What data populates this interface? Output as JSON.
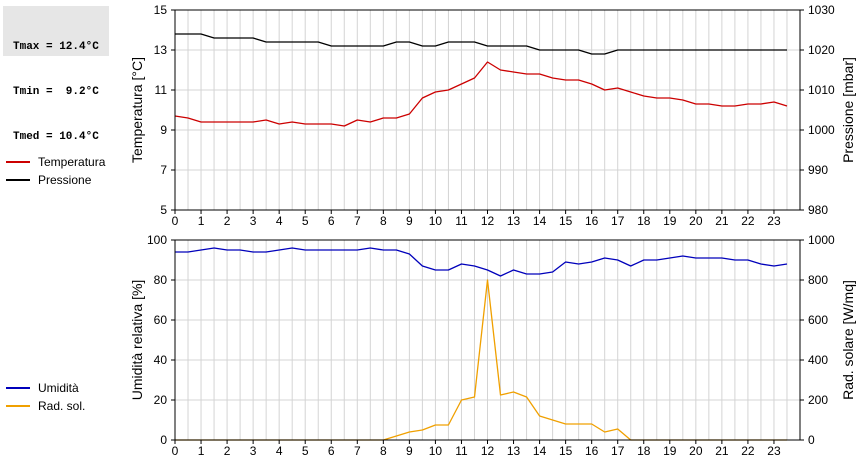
{
  "stats": {
    "tmax": "Tmax = 12.4°C",
    "tmin": "Tmin =  9.2°C",
    "tmed": "Tmed = 10.4°C"
  },
  "colors": {
    "temperature": "#cc0000",
    "pressure": "#000000",
    "humidity": "#0000bb",
    "radiation": "#f0a000",
    "grid": "#d4d4d4"
  },
  "chart_data": [
    {
      "type": "line",
      "title": "",
      "xlabel": "",
      "xlim": [
        0,
        24
      ],
      "x_ticks": [
        "0",
        "1",
        "2",
        "3",
        "4",
        "5",
        "6",
        "7",
        "8",
        "9",
        "10",
        "11",
        "12",
        "13",
        "14",
        "15",
        "16",
        "17",
        "18",
        "19",
        "20",
        "21",
        "22",
        "23"
      ],
      "grid": true,
      "legend": "left",
      "y_left": {
        "label": "Temperatura [°C]",
        "lim": [
          5,
          15
        ],
        "ticks": [
          "5",
          "7",
          "9",
          "11",
          "13",
          "15"
        ]
      },
      "y_right": {
        "label": "Pressione [mbar]",
        "lim": [
          980,
          1030
        ],
        "ticks": [
          "980",
          "990",
          "1000",
          "1010",
          "1020",
          "1030"
        ]
      },
      "x": [
        0,
        0.5,
        1,
        1.5,
        2,
        2.5,
        3,
        3.5,
        4,
        4.5,
        5,
        5.5,
        6,
        6.5,
        7,
        7.5,
        8,
        8.5,
        9,
        9.5,
        10,
        10.5,
        11,
        11.5,
        12,
        12.5,
        13,
        13.5,
        14,
        14.5,
        15,
        15.5,
        16,
        16.5,
        17,
        17.5,
        18,
        18.5,
        19,
        19.5,
        20,
        20.5,
        21,
        21.5,
        22,
        22.5,
        23,
        23.5
      ],
      "series": [
        {
          "name": "Temperatura",
          "axis": "left",
          "values": [
            9.7,
            9.6,
            9.4,
            9.4,
            9.4,
            9.4,
            9.4,
            9.5,
            9.3,
            9.4,
            9.3,
            9.3,
            9.3,
            9.2,
            9.5,
            9.4,
            9.6,
            9.6,
            9.8,
            10.6,
            10.9,
            11.0,
            11.3,
            11.6,
            12.4,
            12.0,
            11.9,
            11.8,
            11.8,
            11.6,
            11.5,
            11.5,
            11.3,
            11.0,
            11.1,
            10.9,
            10.7,
            10.6,
            10.6,
            10.5,
            10.3,
            10.3,
            10.2,
            10.2,
            10.3,
            10.3,
            10.4,
            10.2
          ]
        },
        {
          "name": "Pressione",
          "axis": "right",
          "values": [
            1024,
            1024,
            1024,
            1023,
            1023,
            1023,
            1023,
            1022,
            1022,
            1022,
            1022,
            1022,
            1021,
            1021,
            1021,
            1021,
            1021,
            1022,
            1022,
            1021,
            1021,
            1022,
            1022,
            1022,
            1021,
            1021,
            1021,
            1021,
            1020,
            1020,
            1020,
            1020,
            1019,
            1019,
            1020,
            1020,
            1020,
            1020,
            1020,
            1020,
            1020,
            1020,
            1020,
            1020,
            1020,
            1020,
            1020,
            1020
          ]
        }
      ]
    },
    {
      "type": "line",
      "title": "",
      "xlabel": "",
      "xlim": [
        0,
        24
      ],
      "x_ticks": [
        "0",
        "1",
        "2",
        "3",
        "4",
        "5",
        "6",
        "7",
        "8",
        "9",
        "10",
        "11",
        "12",
        "13",
        "14",
        "15",
        "16",
        "17",
        "18",
        "19",
        "20",
        "21",
        "22",
        "23"
      ],
      "grid": true,
      "legend": "left",
      "y_left": {
        "label": "Umidità relativa [%]",
        "lim": [
          0,
          100
        ],
        "ticks": [
          "0",
          "20",
          "40",
          "60",
          "80",
          "100"
        ]
      },
      "y_right": {
        "label": "Rad. solare [W/mq]",
        "lim": [
          0,
          1000
        ],
        "ticks": [
          "0",
          "200",
          "400",
          "600",
          "800",
          "1000"
        ]
      },
      "x": [
        0,
        0.5,
        1,
        1.5,
        2,
        2.5,
        3,
        3.5,
        4,
        4.5,
        5,
        5.5,
        6,
        6.5,
        7,
        7.5,
        8,
        8.5,
        9,
        9.5,
        10,
        10.5,
        11,
        11.5,
        12,
        12.5,
        13,
        13.5,
        14,
        14.5,
        15,
        15.5,
        16,
        16.5,
        17,
        17.5,
        18,
        18.5,
        19,
        19.5,
        20,
        20.5,
        21,
        21.5,
        22,
        22.5,
        23,
        23.5
      ],
      "series": [
        {
          "name": "Umidità",
          "axis": "left",
          "values": [
            94,
            94,
            95,
            96,
            95,
            95,
            94,
            94,
            95,
            96,
            95,
            95,
            95,
            95,
            95,
            96,
            95,
            95,
            93,
            87,
            85,
            85,
            88,
            87,
            85,
            82,
            85,
            83,
            83,
            84,
            89,
            88,
            89,
            91,
            90,
            87,
            90,
            90,
            91,
            92,
            91,
            91,
            91,
            90,
            90,
            88,
            87,
            88
          ]
        },
        {
          "name": "Rad. sol.",
          "axis": "right",
          "values": [
            0,
            0,
            0,
            0,
            0,
            0,
            0,
            0,
            0,
            0,
            0,
            0,
            0,
            0,
            0,
            0,
            0,
            20,
            40,
            50,
            75,
            75,
            200,
            215,
            800,
            225,
            240,
            215,
            120,
            100,
            80,
            80,
            80,
            40,
            55,
            0,
            0,
            0,
            0,
            0,
            0,
            0,
            0,
            0,
            0,
            0,
            0,
            0
          ]
        }
      ]
    }
  ]
}
